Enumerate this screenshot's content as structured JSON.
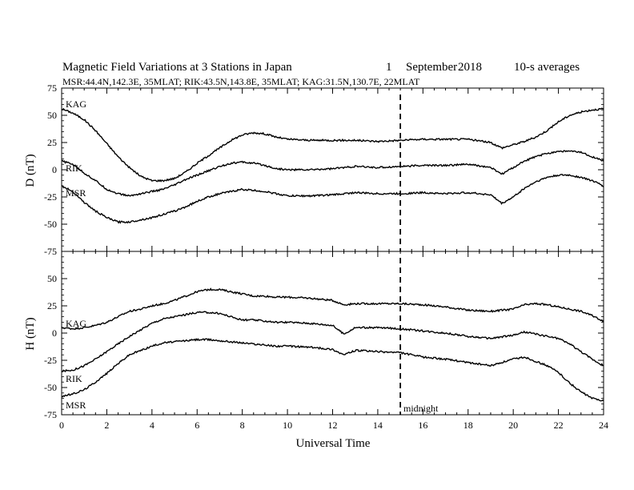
{
  "header": {
    "title_main": "Magnetic Field Variations at 3 Stations in Japan",
    "title_day": "1",
    "title_month": "September",
    "title_year": "2018",
    "title_avg": "10-s averages",
    "subtitle": "MSR:44.4N,142.3E, 35MLAT;  RIK:43.5N,143.8E, 35MLAT;  KAG:31.5N,130.7E, 22MLAT"
  },
  "chart_data": [
    {
      "type": "line",
      "panel": "D",
      "ylabel": "D (nT)",
      "xlabel": "Universal Time",
      "xlim": [
        0,
        24
      ],
      "ylim": [
        -75,
        75
      ],
      "yticks": [
        -75,
        -50,
        -25,
        0,
        25,
        50,
        75
      ],
      "xticks": [
        0,
        2,
        4,
        6,
        8,
        10,
        12,
        14,
        16,
        18,
        20,
        22,
        24
      ],
      "grid": false,
      "annotation_vline": {
        "x": 15,
        "style": "dashed"
      },
      "series": [
        {
          "name": "KAG",
          "x": [
            0,
            0.5,
            1,
            1.5,
            2,
            2.5,
            3,
            3.5,
            4,
            4.5,
            5,
            5.5,
            6,
            6.5,
            7,
            7.5,
            8,
            8.5,
            9,
            9.5,
            10,
            11,
            12,
            13,
            14,
            15,
            16,
            17,
            18,
            19,
            19.5,
            20,
            20.5,
            21,
            21.5,
            22,
            22.5,
            23,
            23.5,
            24
          ],
          "values": [
            56,
            52,
            46,
            36,
            24,
            12,
            2,
            -6,
            -10,
            -10,
            -8,
            -2,
            6,
            13,
            20,
            27,
            32,
            34,
            33,
            30,
            28,
            27,
            27,
            27,
            26,
            27,
            28,
            28,
            28,
            25,
            20,
            23,
            26,
            30,
            36,
            44,
            50,
            53,
            55,
            56
          ]
        },
        {
          "name": "RIK",
          "x": [
            0,
            0.5,
            1,
            1.5,
            2,
            2.5,
            3,
            3.5,
            4,
            4.5,
            5,
            5.5,
            6,
            6.5,
            7,
            7.5,
            8,
            8.5,
            9,
            9.5,
            10,
            11,
            12,
            13,
            14,
            15,
            16,
            17,
            18,
            19,
            19.5,
            20,
            20.5,
            21,
            21.5,
            22,
            22.5,
            23,
            23.5,
            24
          ],
          "values": [
            8,
            5,
            -3,
            -10,
            -18,
            -22,
            -24,
            -22,
            -20,
            -18,
            -14,
            -9,
            -5,
            -1,
            3,
            6,
            7,
            6,
            4,
            1,
            0,
            0,
            1,
            3,
            2,
            3,
            4,
            4,
            5,
            2,
            -4,
            2,
            8,
            12,
            15,
            17,
            17,
            16,
            12,
            8
          ]
        },
        {
          "name": "MSR",
          "x": [
            0,
            0.5,
            1,
            1.5,
            2,
            2.5,
            3,
            3.5,
            4,
            4.5,
            5,
            5.5,
            6,
            6.5,
            7,
            7.5,
            8,
            8.5,
            9,
            9.5,
            10,
            11,
            12,
            13,
            14,
            15,
            16,
            17,
            18,
            19,
            19.5,
            20,
            20.5,
            21,
            21.5,
            22,
            22.5,
            23,
            23.5,
            24
          ],
          "values": [
            -15,
            -20,
            -30,
            -38,
            -44,
            -48,
            -48,
            -46,
            -44,
            -41,
            -38,
            -34,
            -29,
            -25,
            -22,
            -20,
            -18,
            -19,
            -20,
            -22,
            -24,
            -24,
            -23,
            -21,
            -22,
            -22,
            -21,
            -22,
            -21,
            -23,
            -31,
            -25,
            -17,
            -11,
            -7,
            -5,
            -5,
            -7,
            -10,
            -15
          ]
        }
      ]
    },
    {
      "type": "line",
      "panel": "H",
      "ylabel": "H (nT)",
      "xlabel": "Universal Time",
      "xlim": [
        0,
        24
      ],
      "ylim": [
        -75,
        75
      ],
      "yticks": [
        -75,
        -50,
        -25,
        0,
        25,
        50,
        75
      ],
      "xticks": [
        0,
        2,
        4,
        6,
        8,
        10,
        12,
        14,
        16,
        18,
        20,
        22,
        24
      ],
      "grid": false,
      "annotation_vline": {
        "x": 15,
        "style": "dashed",
        "label": "midnight"
      },
      "series": [
        {
          "name": "KAG",
          "x": [
            0,
            0.5,
            1,
            1.5,
            2,
            2.5,
            3,
            3.5,
            4,
            4.5,
            5,
            5.5,
            6,
            6.5,
            7,
            7.5,
            8,
            8.5,
            9,
            9.5,
            10,
            11,
            12,
            12.5,
            13,
            14,
            15,
            16,
            17,
            18,
            19,
            20,
            20.5,
            21,
            21.5,
            22,
            22.5,
            23,
            23.5,
            24
          ],
          "values": [
            5,
            4,
            5,
            7,
            10,
            15,
            20,
            22,
            25,
            27,
            30,
            34,
            38,
            40,
            40,
            38,
            36,
            34,
            34,
            33,
            33,
            32,
            30,
            26,
            27,
            27,
            27,
            26,
            24,
            21,
            20,
            22,
            26,
            27,
            26,
            24,
            22,
            20,
            16,
            11
          ]
        },
        {
          "name": "RIK",
          "x": [
            0,
            0.5,
            1,
            1.5,
            2,
            2.5,
            3,
            3.5,
            4,
            4.5,
            5,
            5.5,
            6,
            6.5,
            7,
            7.5,
            8,
            8.5,
            9,
            9.5,
            10,
            11,
            12,
            12.5,
            13,
            14,
            15,
            16,
            17,
            18,
            19,
            20,
            20.5,
            21,
            21.5,
            22,
            22.5,
            23,
            23.5,
            24
          ],
          "values": [
            -35,
            -34,
            -30,
            -24,
            -17,
            -10,
            -3,
            3,
            9,
            13,
            15,
            17,
            19,
            19,
            18,
            15,
            12,
            12,
            11,
            10,
            10,
            9,
            7,
            -1,
            5,
            5,
            4,
            2,
            0,
            -3,
            -5,
            -2,
            1,
            -1,
            -3,
            -5,
            -10,
            -17,
            -24,
            -30
          ]
        },
        {
          "name": "MSR",
          "x": [
            0,
            0.5,
            1,
            1.5,
            2,
            2.5,
            3,
            3.5,
            4,
            4.5,
            5,
            5.5,
            6,
            6.5,
            7,
            7.5,
            8,
            8.5,
            9,
            9.5,
            10,
            11,
            12,
            12.5,
            13,
            14,
            15,
            16,
            17,
            18,
            19,
            20,
            20.5,
            21,
            21.5,
            22,
            22.5,
            23,
            23.5,
            24
          ],
          "values": [
            -58,
            -56,
            -52,
            -45,
            -37,
            -28,
            -20,
            -16,
            -12,
            -9,
            -8,
            -7,
            -6,
            -6,
            -7,
            -8,
            -9,
            -10,
            -11,
            -12,
            -12,
            -13,
            -15,
            -20,
            -16,
            -17,
            -18,
            -22,
            -24,
            -27,
            -30,
            -24,
            -22,
            -26,
            -30,
            -36,
            -46,
            -54,
            -60,
            -62
          ]
        }
      ]
    }
  ],
  "annotations": {
    "midnight_label": "midnight"
  }
}
